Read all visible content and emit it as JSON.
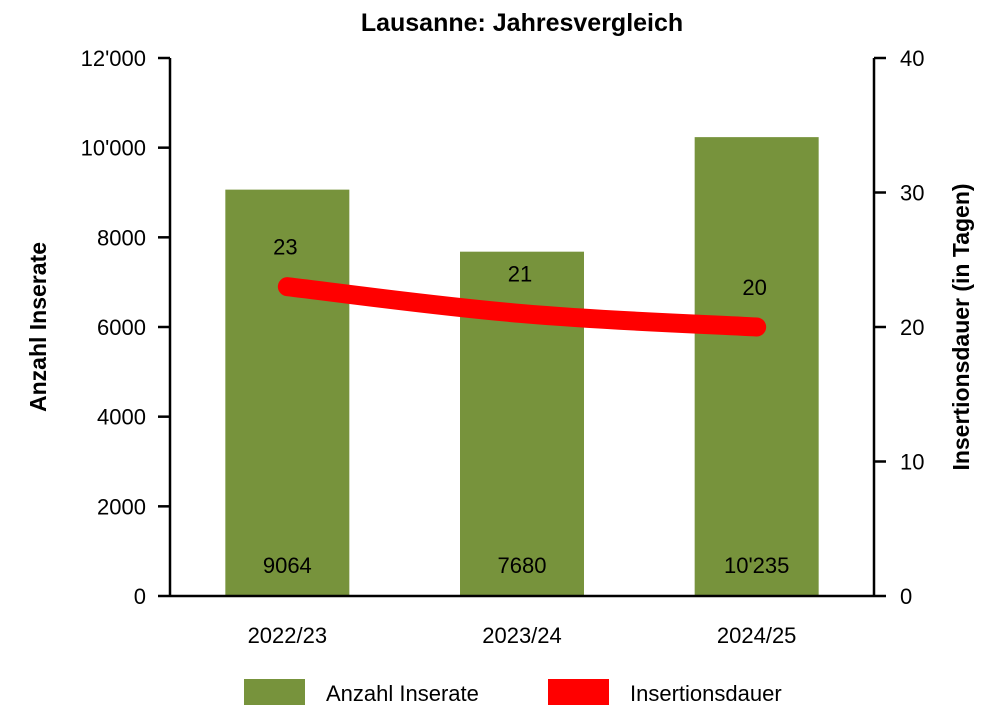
{
  "chart_data": {
    "type": "bar",
    "title": "Lausanne: Jahresvergleich",
    "categories": [
      "2022/23",
      "2023/24",
      "2024/25"
    ],
    "series": [
      {
        "name": "Anzahl Inserate",
        "kind": "bar",
        "axis": "left",
        "color": "#77933c",
        "values": [
          9064,
          7680,
          10235
        ],
        "labels": [
          "9064",
          "7680",
          "10'235"
        ]
      },
      {
        "name": "Insertionsdauer",
        "kind": "line",
        "axis": "right",
        "color": "#ff0000",
        "values": [
          23,
          21,
          20
        ],
        "labels": [
          "23",
          "21",
          "20"
        ]
      }
    ],
    "ylabel": "Anzahl Inserate",
    "y2label": "Insertionsdauer (in Tagen)",
    "ylim": [
      0,
      12000
    ],
    "y2lim": [
      0,
      40
    ],
    "yticks": [
      0,
      2000,
      4000,
      6000,
      8000,
      10000,
      12000
    ],
    "ytick_labels": [
      "0",
      "2000",
      "4000",
      "6000",
      "8000",
      "10'000",
      "12'000"
    ],
    "y2ticks": [
      0,
      10,
      20,
      30,
      40
    ],
    "y2tick_labels": [
      "0",
      "10",
      "20",
      "30",
      "40"
    ],
    "grid": false,
    "legend": "bottom"
  }
}
